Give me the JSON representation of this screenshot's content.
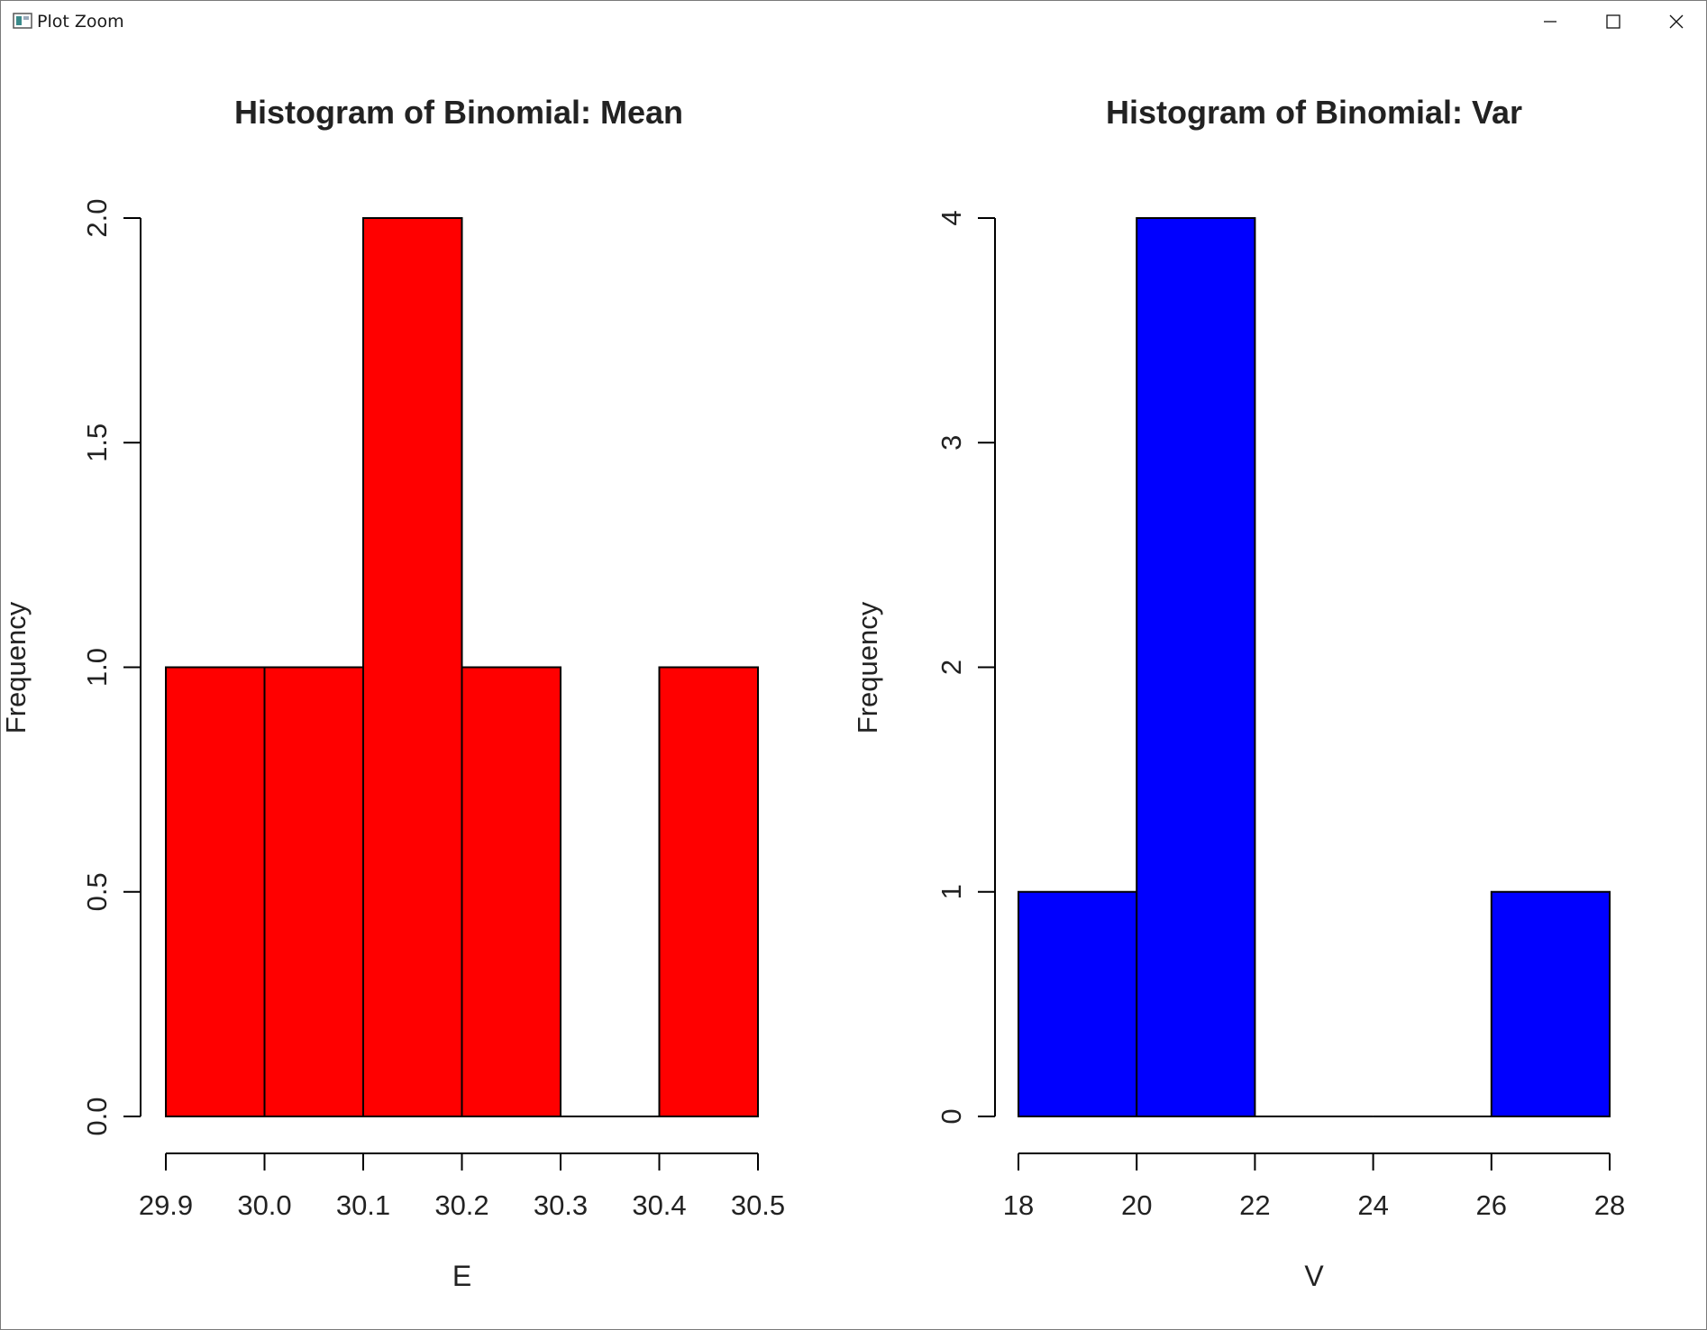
{
  "window": {
    "title": "Plot Zoom",
    "controls": {
      "minimize": "minimize",
      "maximize": "maximize",
      "close": "close"
    }
  },
  "colors": {
    "left_fill": "#ff0000",
    "right_fill": "#0000ff",
    "stroke": "#000000"
  },
  "chart_data": [
    {
      "type": "bar",
      "subtype": "histogram",
      "title": "Histogram of Binomial: Mean",
      "xlabel": "E",
      "ylabel": "Frequency",
      "bins": [
        [
          29.9,
          30.0
        ],
        [
          30.0,
          30.1
        ],
        [
          30.1,
          30.2
        ],
        [
          30.2,
          30.3
        ],
        [
          30.3,
          30.4
        ],
        [
          30.4,
          30.5
        ]
      ],
      "values": [
        1,
        1,
        2,
        1,
        0,
        1
      ],
      "xlim": [
        29.9,
        30.5
      ],
      "ylim": [
        0,
        2
      ],
      "xticks": [
        29.9,
        30.0,
        30.1,
        30.2,
        30.3,
        30.4,
        30.5
      ],
      "xtick_labels": [
        "29.9",
        "30.0",
        "30.1",
        "30.2",
        "30.3",
        "30.4",
        "30.5"
      ],
      "yticks": [
        0,
        0.5,
        1,
        1.5,
        2
      ],
      "ytick_labels": [
        "0.0",
        "0.5",
        "1.0",
        "1.5",
        "2.0"
      ],
      "fill": "#ff0000"
    },
    {
      "type": "bar",
      "subtype": "histogram",
      "title": "Histogram of Binomial: Var",
      "xlabel": "V",
      "ylabel": "Frequency",
      "bins": [
        [
          18,
          20
        ],
        [
          20,
          22
        ],
        [
          22,
          24
        ],
        [
          24,
          26
        ],
        [
          26,
          28
        ]
      ],
      "values": [
        1,
        4,
        0,
        0,
        1
      ],
      "xlim": [
        18,
        28
      ],
      "ylim": [
        0,
        4
      ],
      "xticks": [
        18,
        20,
        22,
        24,
        26,
        28
      ],
      "xtick_labels": [
        "18",
        "20",
        "22",
        "24",
        "26",
        "28"
      ],
      "yticks": [
        0,
        1,
        2,
        3,
        4
      ],
      "ytick_labels": [
        "0",
        "1",
        "2",
        "3",
        "4"
      ],
      "fill": "#0000ff"
    }
  ]
}
